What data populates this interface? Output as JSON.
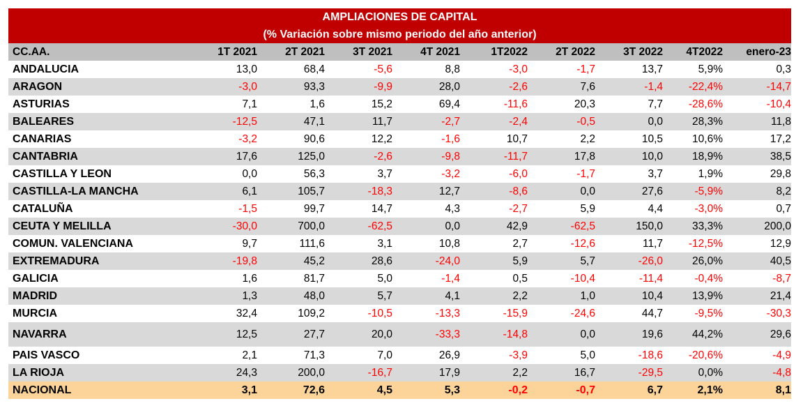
{
  "title": {
    "line1": "AMPLIACIONES DE CAPITAL",
    "line2": "(% Variación sobre mismo periodo del año anterior)"
  },
  "table": {
    "headers": [
      "CC.AA.",
      "1T 2021",
      "2T 2021",
      "3T 2021",
      "4T 2021",
      "1T2022",
      "2T 2022",
      "3T 2022",
      "4T2022",
      "enero-23"
    ],
    "rows": [
      {
        "name": "ANDALUCIA",
        "values": [
          "13,0",
          "68,4",
          "-5,6",
          "8,8",
          "-3,0",
          "-1,7",
          "13,7",
          "5,9%",
          "0,3"
        ]
      },
      {
        "name": "ARAGON",
        "values": [
          "-3,0",
          "93,3",
          "-9,9",
          "28,0",
          "-2,6",
          "7,6",
          "-1,4",
          "-22,4%",
          "-14,7"
        ]
      },
      {
        "name": "ASTURIAS",
        "values": [
          "7,1",
          "1,6",
          "15,2",
          "69,4",
          "-11,6",
          "20,3",
          "7,7",
          "-28,6%",
          "-10,4"
        ]
      },
      {
        "name": "BALEARES",
        "values": [
          "-12,5",
          "47,1",
          "11,7",
          "-2,7",
          "-2,4",
          "-0,5",
          "0,0",
          "28,3%",
          "11,8"
        ]
      },
      {
        "name": "CANARIAS",
        "values": [
          "-3,2",
          "90,6",
          "12,2",
          "-1,6",
          "10,7",
          "2,2",
          "10,5",
          "10,6%",
          "17,2"
        ]
      },
      {
        "name": "CANTABRIA",
        "values": [
          "17,6",
          "125,0",
          "-2,6",
          "-9,8",
          "-11,7",
          "17,8",
          "10,0",
          "18,9%",
          "38,5"
        ]
      },
      {
        "name": "CASTILLA Y LEON",
        "values": [
          "0,0",
          "56,3",
          "3,7",
          "-3,2",
          "-6,0",
          "-1,7",
          "3,7",
          "1,9%",
          "29,8"
        ]
      },
      {
        "name": "CASTILLA-LA MANCHA",
        "values": [
          "6,1",
          "105,7",
          "-18,3",
          "12,7",
          "-8,6",
          "0,0",
          "27,6",
          "-5,9%",
          "8,2"
        ]
      },
      {
        "name": "CATALUÑA",
        "values": [
          "-1,5",
          "99,7",
          "14,7",
          "4,3",
          "-2,7",
          "5,9",
          "4,4",
          "-3,0%",
          "0,7"
        ]
      },
      {
        "name": "CEUTA Y MELILLA",
        "values": [
          "-30,0",
          "700,0",
          "-62,5",
          "0,0",
          "42,9",
          "-62,5",
          "150,0",
          "33,3%",
          "200,0"
        ]
      },
      {
        "name": "COMUN. VALENCIANA",
        "values": [
          "9,7",
          "111,6",
          "3,1",
          "10,8",
          "2,7",
          "-12,6",
          "11,7",
          "-12,5%",
          "12,9"
        ]
      },
      {
        "name": "EXTREMADURA",
        "values": [
          "-19,8",
          "45,2",
          "28,6",
          "-24,0",
          "5,9",
          "5,7",
          "-26,0",
          "26,0%",
          "40,5"
        ]
      },
      {
        "name": "GALICIA",
        "values": [
          "1,6",
          "81,7",
          "5,0",
          "-1,4",
          "0,5",
          "-10,4",
          "-11,4",
          "-0,4%",
          "-8,7"
        ]
      },
      {
        "name": "MADRID",
        "values": [
          "1,3",
          "48,0",
          "5,7",
          "4,1",
          "2,2",
          "1,0",
          "10,4",
          "13,9%",
          "21,4"
        ]
      },
      {
        "name": "MURCIA",
        "values": [
          "32,4",
          "109,2",
          "-10,5",
          "-13,3",
          "-15,9",
          "-24,6",
          "44,7",
          "-9,5%",
          "-30,3"
        ]
      },
      {
        "name": "NAVARRA",
        "values": [
          "12,5",
          "27,7",
          "20,0",
          "-33,3",
          "-14,8",
          "0,0",
          "19,6",
          "44,2%",
          "29,6"
        ]
      },
      {
        "name": "PAIS VASCO",
        "values": [
          "2,1",
          "71,3",
          "7,0",
          "26,9",
          "-3,9",
          "5,0",
          "-18,6",
          "-20,6%",
          "-4,9"
        ]
      },
      {
        "name": "LA RIOJA",
        "values": [
          "24,3",
          "200,0",
          "-16,7",
          "17,9",
          "2,2",
          "16,7",
          "-29,5",
          "0,0%",
          "-4,8"
        ]
      }
    ],
    "total": {
      "name": "NACIONAL",
      "values": [
        "3,1",
        "72,6",
        "4,5",
        "5,3",
        "-0,2",
        "-0,7",
        "6,7",
        "2,1%",
        "8,1"
      ]
    }
  },
  "colors": {
    "title_bg": "#c00000",
    "header_bg": "#bfbfbf",
    "alt_row_bg": "#d9d9d9",
    "total_bg": "#fcd49a",
    "negative_text": "#ff0000"
  }
}
